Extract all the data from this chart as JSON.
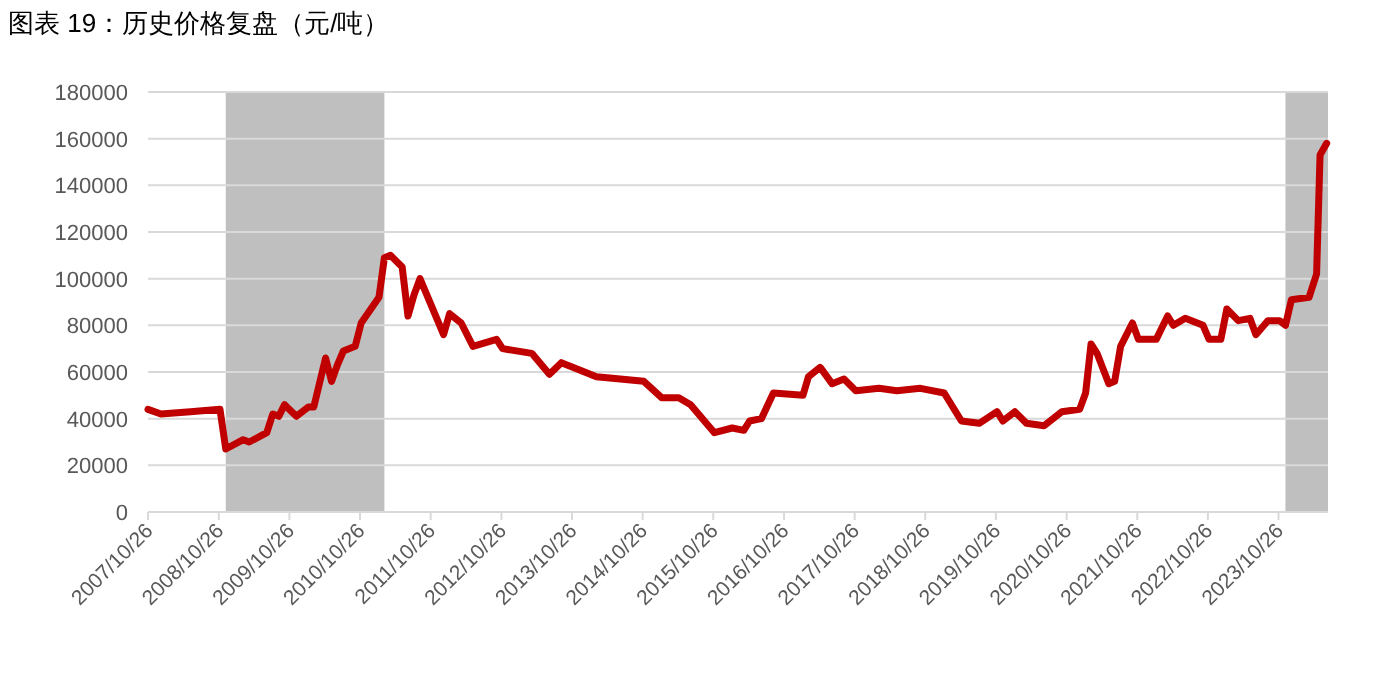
{
  "chart_data": {
    "type": "line",
    "title": "图表 19：历史价格复盘（元/吨）",
    "xlim": [
      "2007-10-26",
      "2024-07-08"
    ],
    "ylim": [
      0,
      180000
    ],
    "xticks": [
      {
        "value": "2007-10-26",
        "label": "2007/10/26"
      },
      {
        "value": "2008-10-26",
        "label": "2008/10/26"
      },
      {
        "value": "2009-10-26",
        "label": "2009/10/26"
      },
      {
        "value": "2010-10-26",
        "label": "2010/10/26"
      },
      {
        "value": "2011-10-26",
        "label": "2011/10/26"
      },
      {
        "value": "2012-10-26",
        "label": "2012/10/26"
      },
      {
        "value": "2013-10-26",
        "label": "2013/10/26"
      },
      {
        "value": "2014-10-26",
        "label": "2014/10/26"
      },
      {
        "value": "2015-10-26",
        "label": "2015/10/26"
      },
      {
        "value": "2016-10-26",
        "label": "2016/10/26"
      },
      {
        "value": "2017-10-26",
        "label": "2017/10/26"
      },
      {
        "value": "2018-10-26",
        "label": "2018/10/26"
      },
      {
        "value": "2019-10-26",
        "label": "2019/10/26"
      },
      {
        "value": "2020-10-26",
        "label": "2020/10/26"
      },
      {
        "value": "2021-10-26",
        "label": "2021/10/26"
      },
      {
        "value": "2022-10-26",
        "label": "2022/10/26"
      },
      {
        "value": "2023-10-26",
        "label": "2023/10/26"
      }
    ],
    "yticks": [
      0,
      20000,
      40000,
      60000,
      80000,
      100000,
      120000,
      140000,
      160000,
      180000
    ],
    "grid": "y",
    "bands": [
      {
        "axis": "x",
        "from": "2008-12",
        "to": "2011-03",
        "color": "#bfbfbf"
      },
      {
        "axis": "x",
        "from": "2023-12",
        "to": "2024-07-08",
        "color": "#bfbfbf"
      }
    ],
    "series": [
      {
        "color": "#c00000",
        "x": [
          "2007-10-26",
          "2008-01",
          "2008-06",
          "2008-11",
          "2008-12",
          "2009-03",
          "2009-04",
          "2009-07",
          "2009-08",
          "2009-09",
          "2009-10",
          "2009-12",
          "2010-02",
          "2010-03",
          "2010-05",
          "2010-06",
          "2010-07",
          "2010-08",
          "2010-10",
          "2010-11",
          "2011-02",
          "2011-03",
          "2011-04",
          "2011-06",
          "2011-07",
          "2011-08",
          "2011-09",
          "2011-11",
          "2012-01",
          "2012-02",
          "2012-04",
          "2012-06",
          "2012-10",
          "2012-11",
          "2013-04",
          "2013-07",
          "2013-09",
          "2013-12",
          "2014-03",
          "2014-11",
          "2015-02",
          "2015-05",
          "2015-07",
          "2015-11",
          "2016-02",
          "2016-04",
          "2016-05",
          "2016-07",
          "2016-09",
          "2017-02",
          "2017-03",
          "2017-05",
          "2017-07",
          "2017-09",
          "2017-11",
          "2018-03",
          "2018-06",
          "2018-10",
          "2019-02",
          "2019-05",
          "2019-08",
          "2019-11",
          "2019-12",
          "2020-02",
          "2020-04",
          "2020-07",
          "2020-10",
          "2021-01",
          "2021-02",
          "2021-03",
          "2021-04",
          "2021-06",
          "2021-07",
          "2021-08",
          "2021-10",
          "2021-11",
          "2022-02",
          "2022-04",
          "2022-05",
          "2022-07",
          "2022-10",
          "2022-11",
          "2023-01",
          "2023-02",
          "2023-04",
          "2023-06",
          "2023-07",
          "2023-09",
          "2023-11",
          "2023-12",
          "2024-01",
          "2024-04",
          "2024-05-10",
          "2024-05-28",
          "2024-07-01"
        ],
        "values": [
          44000,
          42000,
          43000,
          44000,
          27000,
          31000,
          30000,
          34000,
          42000,
          41000,
          46000,
          41000,
          45000,
          45000,
          66000,
          56000,
          63000,
          69000,
          71000,
          81000,
          92000,
          109000,
          110000,
          105000,
          84000,
          93000,
          100000,
          88000,
          76000,
          85000,
          81000,
          71000,
          74000,
          70000,
          68000,
          59000,
          64000,
          61000,
          58000,
          56000,
          49000,
          49000,
          46000,
          34000,
          36000,
          35000,
          39000,
          40000,
          51000,
          50000,
          58000,
          62000,
          55000,
          57000,
          52000,
          53000,
          52000,
          53000,
          51000,
          39000,
          38000,
          43000,
          39000,
          43000,
          38000,
          37000,
          43000,
          44000,
          51000,
          72000,
          68000,
          55000,
          56000,
          71000,
          81000,
          74000,
          74000,
          84000,
          80000,
          83000,
          80000,
          74000,
          74000,
          87000,
          82000,
          83000,
          76000,
          82000,
          82000,
          80000,
          91000,
          92000,
          102000,
          153000,
          158000
        ]
      }
    ]
  }
}
